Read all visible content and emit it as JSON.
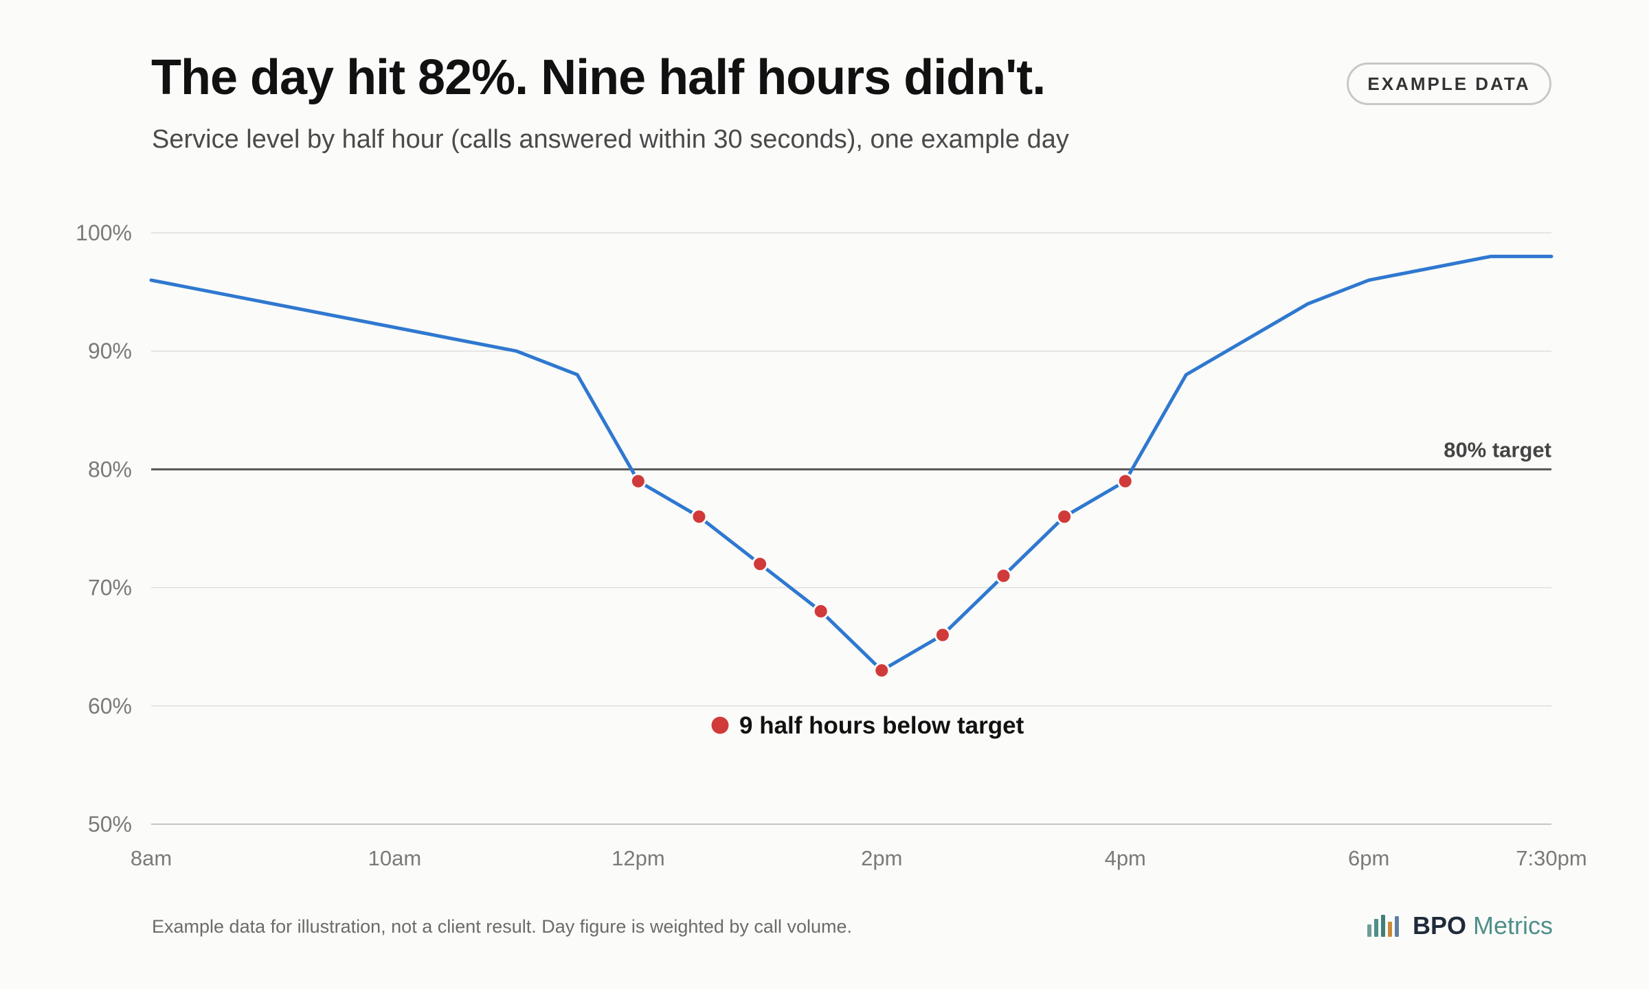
{
  "header": {
    "title": "The day hit 82%. Nine half hours didn't.",
    "subtitle": "Service level by half hour (calls answered within 30 seconds), one example day",
    "badge": "EXAMPLE DATA"
  },
  "footer": {
    "note": "Example data for illustration, not a client result. Day figure is weighted by call volume.",
    "logo_name": "BPO",
    "logo_sub": "Metrics"
  },
  "colors": {
    "line": "#2f78d0",
    "below_target_marker": "#d03a3a",
    "target_line": "#555555",
    "grid": "#dedede",
    "axis_text": "#7a7a7a"
  },
  "chart_data": {
    "type": "line",
    "title": "The day hit 82%. Nine half hours didn't.",
    "subtitle": "Service level by half hour (calls answered within 30 seconds), one example day",
    "xlabel": "",
    "ylabel": "",
    "unit": "%",
    "x_range": [
      "8am",
      "7:30pm"
    ],
    "ylim": [
      50,
      100
    ],
    "y_ticks": [
      100,
      90,
      80,
      70,
      60,
      50
    ],
    "y_tick_labels": [
      "100%",
      "90%",
      "80%",
      "70%",
      "60%",
      "50%"
    ],
    "x_ticks": [
      {
        "time": "8:00",
        "label": "8am"
      },
      {
        "time": "10:00",
        "label": "10am"
      },
      {
        "time": "12:00",
        "label": "12pm"
      },
      {
        "time": "14:00",
        "label": "2pm"
      },
      {
        "time": "16:00",
        "label": "4pm"
      },
      {
        "time": "18:00",
        "label": "6pm"
      },
      {
        "time": "19:30",
        "label": "7:30pm"
      }
    ],
    "grid": true,
    "target": {
      "value": 80,
      "label": "80% target"
    },
    "series": [
      {
        "values": [
          {
            "time": "8:00",
            "value": 96
          },
          {
            "time": "11:00",
            "value": 90
          },
          {
            "time": "11:30",
            "value": 88
          },
          {
            "time": "12:00",
            "value": 79
          },
          {
            "time": "12:30",
            "value": 76
          },
          {
            "time": "13:00",
            "value": 72
          },
          {
            "time": "13:30",
            "value": 68
          },
          {
            "time": "14:00",
            "value": 63
          },
          {
            "time": "14:30",
            "value": 66
          },
          {
            "time": "15:00",
            "value": 71
          },
          {
            "time": "15:30",
            "value": 76
          },
          {
            "time": "16:00",
            "value": 79
          },
          {
            "time": "16:30",
            "value": 88
          },
          {
            "time": "17:30",
            "value": 94
          },
          {
            "time": "18:00",
            "value": 96
          },
          {
            "time": "19:00",
            "value": 98
          },
          {
            "time": "19:30",
            "value": 98
          }
        ]
      }
    ],
    "annotation": {
      "text": "9 half hours below target"
    }
  }
}
